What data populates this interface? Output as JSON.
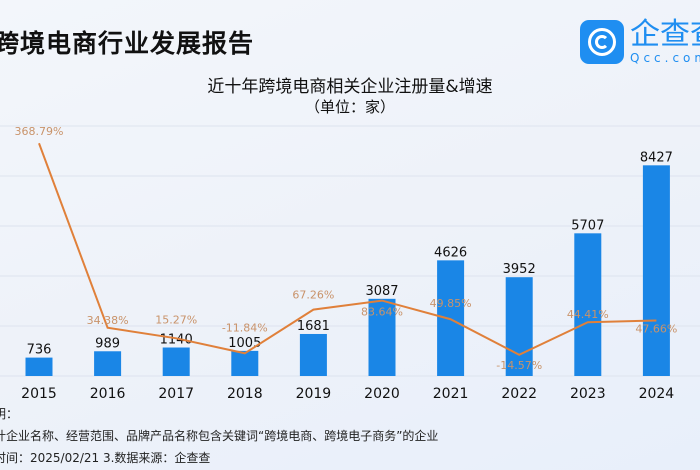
{
  "header": {
    "report_title": "跨境电商行业发展报告",
    "logo": {
      "cn": "企查查",
      "en": "Qcc.com"
    }
  },
  "chart_data": {
    "type": "bar+line",
    "title": "近十年跨境电商相关企业注册量&增速",
    "subtitle": "（单位：家）",
    "categories": [
      "2015",
      "2016",
      "2017",
      "2018",
      "2019",
      "2020",
      "2021",
      "2022",
      "2023",
      "2024"
    ],
    "series": [
      {
        "type": "bar",
        "values": [
          736,
          989,
          1140,
          1005,
          1681,
          3087,
          4626,
          3952,
          5707,
          8427
        ],
        "color": "#1a86e6"
      },
      {
        "type": "line",
        "values": [
          368.79,
          34.38,
          15.27,
          -11.84,
          67.26,
          83.64,
          49.85,
          -14.57,
          44.41,
          47.66
        ],
        "labels": [
          "368.79%",
          "34.38%",
          "15.27%",
          "-11.84%",
          "67.26%",
          "83.64%",
          "49.85%",
          "-14.57%",
          "44.41%",
          "47.66%"
        ],
        "color": "#e0803a",
        "label_color": "#c9936a"
      }
    ],
    "ylim": [
      0,
      10000
    ],
    "y2lim": [
      -53,
      400
    ],
    "grid": true,
    "legend": "none"
  },
  "notes": {
    "line1": "明：",
    "line2": "计企业名称、经营范围、品牌产品名称包含关键词“跨境电商、跨境电子商务”的企业",
    "line3": "时间：2025/02/21   3.数据来源：企查查"
  }
}
